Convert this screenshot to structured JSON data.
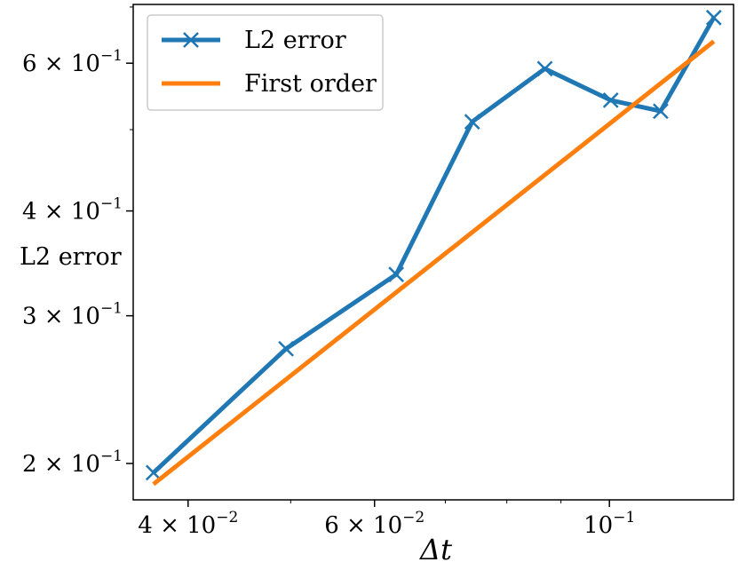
{
  "chart_data": {
    "type": "line",
    "xlabel": "Δt",
    "ylabel": "L2 error",
    "xscale": "log",
    "yscale": "log",
    "xlim": [
      0.0355,
      0.131
    ],
    "ylim": [
      0.181,
      0.705
    ],
    "grid": false,
    "legend_position": "top-left",
    "x_ticks": [
      {
        "value": 0.04,
        "mant": "4",
        "exp": "−2"
      },
      {
        "value": 0.06,
        "mant": "6",
        "exp": "−2"
      },
      {
        "value": 0.1,
        "mant": "",
        "exp": "−1"
      }
    ],
    "y_ticks": [
      {
        "value": 0.2,
        "mant": "2",
        "exp": "−1"
      },
      {
        "value": 0.3,
        "mant": "3",
        "exp": "−1"
      },
      {
        "value": 0.4,
        "mant": "4",
        "exp": "−1"
      },
      {
        "value": 0.6,
        "mant": "6",
        "exp": "−1"
      }
    ],
    "series": [
      {
        "name": "L2 error",
        "color": "#1f77b4",
        "marker": "x",
        "x": [
          0.0371,
          0.0495,
          0.0629,
          0.0742,
          0.0869,
          0.1003,
          0.1118,
          0.1255
        ],
        "y": [
          0.195,
          0.274,
          0.336,
          0.511,
          0.591,
          0.542,
          0.526,
          0.68
        ]
      },
      {
        "name": "First order",
        "color": "#ff7f0e",
        "marker": "none",
        "x": [
          0.0371,
          0.1255
        ],
        "y": [
          0.189,
          0.637
        ]
      }
    ]
  }
}
